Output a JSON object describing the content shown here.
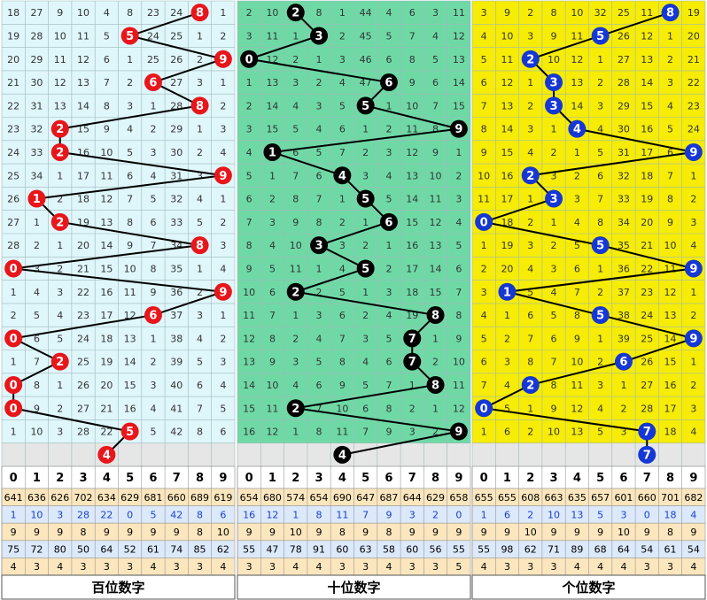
{
  "panels": [
    {
      "title": "百位数字",
      "bg": "#dff6fb",
      "ball": "#e8161b",
      "digits": [
        0,
        1,
        2,
        3,
        4,
        5,
        6,
        7,
        8,
        9
      ],
      "rows": [
        {
          "draw": 8,
          "misses": [
            18,
            27,
            9,
            10,
            4,
            8,
            23,
            24,
            1
          ]
        },
        {
          "draw": 5,
          "misses": [
            19,
            28,
            10,
            11,
            5,
            24,
            25,
            1,
            2
          ]
        },
        {
          "draw": 9,
          "misses": [
            20,
            29,
            11,
            12,
            6,
            1,
            25,
            26,
            2
          ]
        },
        {
          "draw": 6,
          "misses": [
            21,
            30,
            12,
            13,
            7,
            2,
            27,
            3,
            1
          ]
        },
        {
          "draw": 8,
          "misses": [
            22,
            31,
            13,
            14,
            8,
            3,
            1,
            28,
            2
          ]
        },
        {
          "draw": 2,
          "misses": [
            23,
            32,
            15,
            9,
            4,
            2,
            29,
            1,
            3
          ]
        },
        {
          "draw": 2,
          "misses": [
            24,
            33,
            16,
            10,
            5,
            3,
            30,
            2,
            4
          ]
        },
        {
          "draw": 9,
          "misses": [
            25,
            34,
            1,
            17,
            11,
            6,
            4,
            31,
            3
          ]
        },
        {
          "draw": 1,
          "misses": [
            26,
            2,
            18,
            12,
            7,
            5,
            32,
            4,
            1
          ]
        },
        {
          "draw": 2,
          "misses": [
            27,
            1,
            19,
            13,
            8,
            6,
            33,
            5,
            2
          ]
        },
        {
          "draw": 8,
          "misses": [
            28,
            2,
            1,
            20,
            14,
            9,
            7,
            34,
            3
          ]
        },
        {
          "draw": 0,
          "misses": [
            3,
            2,
            21,
            15,
            10,
            8,
            35,
            1,
            4
          ]
        },
        {
          "draw": 9,
          "misses": [
            1,
            4,
            3,
            22,
            16,
            11,
            9,
            36,
            2
          ]
        },
        {
          "draw": 6,
          "misses": [
            2,
            5,
            4,
            23,
            17,
            12,
            37,
            3,
            1
          ]
        },
        {
          "draw": 0,
          "misses": [
            6,
            5,
            24,
            18,
            13,
            1,
            38,
            4,
            2
          ]
        },
        {
          "draw": 2,
          "misses": [
            1,
            7,
            25,
            19,
            14,
            2,
            39,
            5,
            3
          ]
        },
        {
          "draw": 0,
          "misses": [
            8,
            1,
            26,
            20,
            15,
            3,
            40,
            6,
            4
          ]
        },
        {
          "draw": 0,
          "misses": [
            9,
            2,
            27,
            21,
            16,
            4,
            41,
            7,
            5
          ]
        },
        {
          "draw": 5,
          "misses": [
            1,
            10,
            3,
            28,
            22,
            5,
            42,
            8,
            6
          ]
        }
      ],
      "forecast": 4,
      "stats": [
        [
          641,
          636,
          626,
          702,
          634,
          629,
          681,
          660,
          689,
          619
        ],
        [
          1,
          10,
          3,
          28,
          22,
          0,
          5,
          42,
          8,
          6
        ],
        [
          9,
          9,
          9,
          8,
          9,
          9,
          9,
          9,
          8,
          10
        ],
        [
          75,
          72,
          80,
          50,
          64,
          52,
          61,
          74,
          85,
          62
        ],
        [
          4,
          3,
          4,
          3,
          3,
          3,
          4,
          3,
          3,
          4
        ]
      ]
    },
    {
      "title": "十位数字",
      "bg": "#6fd9a6",
      "ball": "#000000",
      "digits": [
        0,
        1,
        2,
        3,
        4,
        5,
        6,
        7,
        8,
        9
      ],
      "rows": [
        {
          "draw": 2,
          "misses": [
            2,
            10,
            8,
            1,
            44,
            4,
            6,
            3,
            11
          ]
        },
        {
          "draw": 3,
          "misses": [
            3,
            11,
            1,
            2,
            45,
            5,
            7,
            4,
            12
          ]
        },
        {
          "draw": 0,
          "misses": [
            12,
            2,
            1,
            3,
            46,
            6,
            8,
            5,
            13
          ]
        },
        {
          "draw": 6,
          "misses": [
            1,
            13,
            3,
            2,
            4,
            47,
            9,
            6,
            14
          ]
        },
        {
          "draw": 5,
          "misses": [
            2,
            14,
            4,
            3,
            5,
            1,
            10,
            7,
            15
          ]
        },
        {
          "draw": 9,
          "misses": [
            3,
            15,
            5,
            4,
            6,
            1,
            2,
            11,
            8
          ]
        },
        {
          "draw": 1,
          "misses": [
            4,
            6,
            5,
            7,
            2,
            3,
            12,
            9,
            1
          ]
        },
        {
          "draw": 4,
          "misses": [
            5,
            1,
            7,
            6,
            3,
            4,
            13,
            10,
            2
          ]
        },
        {
          "draw": 5,
          "misses": [
            6,
            2,
            8,
            7,
            1,
            5,
            14,
            11,
            3
          ]
        },
        {
          "draw": 6,
          "misses": [
            7,
            3,
            9,
            8,
            2,
            1,
            15,
            12,
            4
          ]
        },
        {
          "draw": 3,
          "misses": [
            8,
            4,
            10,
            3,
            2,
            1,
            16,
            13,
            5
          ]
        },
        {
          "draw": 5,
          "misses": [
            9,
            5,
            11,
            1,
            4,
            2,
            17,
            14,
            6
          ]
        },
        {
          "draw": 2,
          "misses": [
            10,
            6,
            2,
            5,
            1,
            3,
            18,
            15,
            7
          ]
        },
        {
          "draw": 8,
          "misses": [
            11,
            7,
            1,
            3,
            6,
            2,
            4,
            19,
            8
          ]
        },
        {
          "draw": 7,
          "misses": [
            12,
            8,
            2,
            4,
            7,
            3,
            5,
            1,
            9
          ]
        },
        {
          "draw": 7,
          "misses": [
            13,
            9,
            3,
            5,
            8,
            4,
            6,
            2,
            10
          ]
        },
        {
          "draw": 8,
          "misses": [
            14,
            10,
            4,
            6,
            9,
            5,
            7,
            1,
            11
          ]
        },
        {
          "draw": 2,
          "misses": [
            15,
            11,
            7,
            10,
            6,
            8,
            2,
            1,
            12
          ]
        },
        {
          "draw": 9,
          "misses": [
            16,
            12,
            1,
            8,
            11,
            7,
            9,
            3,
            2
          ]
        }
      ],
      "forecast": 4,
      "stats": [
        [
          654,
          680,
          574,
          654,
          690,
          647,
          687,
          644,
          629,
          658
        ],
        [
          16,
          12,
          1,
          8,
          11,
          7,
          9,
          3,
          2,
          0
        ],
        [
          9,
          9,
          10,
          9,
          8,
          9,
          8,
          9,
          9,
          9
        ],
        [
          55,
          47,
          78,
          91,
          60,
          63,
          58,
          60,
          56,
          55
        ],
        [
          3,
          3,
          4,
          4,
          3,
          3,
          4,
          3,
          3,
          5
        ]
      ]
    },
    {
      "title": "个位数字",
      "bg": "#f6ec05",
      "ball": "#1537d6",
      "digits": [
        0,
        1,
        2,
        3,
        4,
        5,
        6,
        7,
        8,
        9
      ],
      "rows": [
        {
          "draw": 8,
          "misses": [
            3,
            9,
            2,
            8,
            10,
            32,
            25,
            11,
            19
          ]
        },
        {
          "draw": 5,
          "misses": [
            4,
            10,
            3,
            9,
            11,
            26,
            12,
            1,
            20
          ]
        },
        {
          "draw": 2,
          "misses": [
            5,
            11,
            10,
            12,
            1,
            27,
            13,
            2,
            21
          ]
        },
        {
          "draw": 3,
          "misses": [
            6,
            12,
            1,
            13,
            2,
            28,
            14,
            3,
            22
          ]
        },
        {
          "draw": 3,
          "misses": [
            7,
            13,
            2,
            14,
            3,
            29,
            15,
            4,
            23
          ]
        },
        {
          "draw": 4,
          "misses": [
            8,
            14,
            3,
            1,
            4,
            30,
            16,
            5,
            24
          ]
        },
        {
          "draw": 9,
          "misses": [
            9,
            15,
            4,
            2,
            1,
            5,
            31,
            17,
            6
          ]
        },
        {
          "draw": 2,
          "misses": [
            10,
            16,
            3,
            2,
            6,
            32,
            18,
            7,
            1
          ]
        },
        {
          "draw": 3,
          "misses": [
            11,
            17,
            1,
            3,
            7,
            33,
            19,
            8,
            2
          ]
        },
        {
          "draw": 0,
          "misses": [
            18,
            2,
            1,
            4,
            8,
            34,
            20,
            9,
            3
          ]
        },
        {
          "draw": 5,
          "misses": [
            1,
            19,
            3,
            2,
            5,
            35,
            21,
            10,
            4
          ]
        },
        {
          "draw": 9,
          "misses": [
            2,
            20,
            4,
            3,
            6,
            1,
            36,
            22,
            11
          ]
        },
        {
          "draw": 1,
          "misses": [
            3,
            5,
            4,
            7,
            2,
            37,
            23,
            12,
            1
          ]
        },
        {
          "draw": 5,
          "misses": [
            4,
            1,
            6,
            5,
            8,
            38,
            24,
            13,
            2
          ]
        },
        {
          "draw": 9,
          "misses": [
            5,
            2,
            7,
            6,
            9,
            1,
            39,
            25,
            14
          ]
        },
        {
          "draw": 6,
          "misses": [
            6,
            3,
            8,
            7,
            10,
            2,
            26,
            15,
            1
          ]
        },
        {
          "draw": 2,
          "misses": [
            7,
            4,
            8,
            11,
            3,
            1,
            27,
            16,
            2
          ]
        },
        {
          "draw": 0,
          "misses": [
            5,
            1,
            9,
            12,
            4,
            2,
            28,
            17,
            3
          ]
        },
        {
          "draw": 7,
          "misses": [
            1,
            6,
            2,
            10,
            13,
            5,
            3,
            18,
            4
          ]
        }
      ],
      "forecast": 7,
      "stats": [
        [
          655,
          655,
          608,
          663,
          635,
          657,
          601,
          660,
          701,
          682
        ],
        [
          1,
          6,
          2,
          10,
          13,
          5,
          3,
          0,
          18,
          4
        ],
        [
          9,
          9,
          10,
          9,
          9,
          9,
          10,
          9,
          8,
          9
        ],
        [
          55,
          98,
          62,
          71,
          89,
          68,
          64,
          54,
          61,
          54
        ],
        [
          4,
          3,
          3,
          3,
          4,
          4,
          4,
          3,
          3,
          4
        ]
      ]
    }
  ],
  "stat_rows": [
    {
      "bg": "#fbe6bd",
      "color": "#000000"
    },
    {
      "bg": "#dbe9fb",
      "color": "#1a3fd0"
    },
    {
      "bg": "#fbe6bd",
      "color": "#000000"
    },
    {
      "bg": "#dbe9fb",
      "color": "#000000"
    },
    {
      "bg": "#fbe6bd",
      "color": "#000000"
    }
  ]
}
